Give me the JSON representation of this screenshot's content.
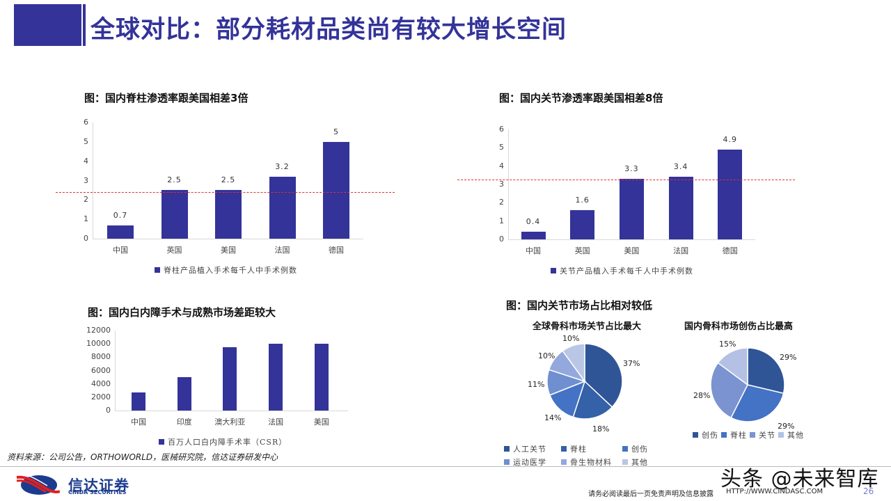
{
  "header": {
    "title": "全球对比：部分耗材品类尚有较大增长空间"
  },
  "chart_data": [
    {
      "type": "bar",
      "title": "图：国内脊柱渗透率跟美国相差3倍",
      "categories": [
        "中国",
        "英国",
        "美国",
        "法国",
        "德国"
      ],
      "values": [
        0.7,
        2.5,
        2.5,
        3.2,
        5
      ],
      "value_labels": [
        "0.7",
        "2.5",
        "2.5",
        "3.2",
        "5"
      ],
      "legend": "脊柱产品植入手术每千人中手术例数",
      "yticks": [
        "0",
        "1",
        "2",
        "3",
        "4",
        "5",
        "6"
      ],
      "ylim": [
        0,
        6
      ],
      "reference_line": 2.4,
      "xlabel": "",
      "ylabel": ""
    },
    {
      "type": "bar",
      "title": "图：国内关节渗透率跟美国相差8倍",
      "categories": [
        "中国",
        "英国",
        "美国",
        "法国",
        "德国"
      ],
      "values": [
        0.4,
        1.6,
        3.3,
        3.4,
        4.9
      ],
      "value_labels": [
        "0.4",
        "1.6",
        "3.3",
        "3.4",
        "4.9"
      ],
      "legend": "关节产品植入手术每千人中手术例数",
      "yticks": [
        "0",
        "1",
        "2",
        "3",
        "4",
        "5",
        "6"
      ],
      "ylim": [
        0,
        6
      ],
      "reference_line": 3.25,
      "xlabel": "",
      "ylabel": ""
    },
    {
      "type": "bar",
      "title": "图：国内白内障手术与成熟市场差距较大",
      "categories": [
        "中国",
        "印度",
        "澳大利亚",
        "法国",
        "美国"
      ],
      "values": [
        2700,
        5000,
        9500,
        10000,
        10000
      ],
      "legend": "百万人口白内障手术率（CSR）",
      "yticks": [
        "0",
        "2000",
        "4000",
        "6000",
        "8000",
        "10000",
        "12000"
      ],
      "ylim": [
        0,
        12000
      ],
      "xlabel": "",
      "ylabel": ""
    },
    {
      "type": "pie",
      "section_title": "图：国内关节市场占比相对较低",
      "title": "全球骨科市场关节占比最大",
      "labels": [
        "人工关节",
        "脊柱",
        "创伤",
        "运动医学",
        "骨生物材料",
        "其他"
      ],
      "values": [
        37,
        18,
        14,
        11,
        10,
        10
      ],
      "value_labels": [
        "37%",
        "18%",
        "14%",
        "11%",
        "10%",
        "10%"
      ],
      "colors": [
        "#2f5597",
        "#3461a8",
        "#4472c4",
        "#6f8fd0",
        "#93a8dc",
        "#b9c6e6"
      ]
    },
    {
      "type": "pie",
      "title": "国内骨科市场创伤占比最高",
      "labels": [
        "创伤",
        "脊柱",
        "关节",
        "其他"
      ],
      "values": [
        29,
        29,
        28,
        15
      ],
      "value_labels": [
        "29%",
        "29%",
        "28%",
        "15%"
      ],
      "colors": [
        "#2f5597",
        "#4472c4",
        "#7b93d0",
        "#b4c1e4"
      ]
    }
  ],
  "footer": {
    "source": "资料来源：公司公告，ORTHOWORLD，医械研究院，信达证券研发中心",
    "disclaimer": "请务必阅读最后一页免责声明及信息披露",
    "url": "HTTP://WWW.CINDASC.COM",
    "page_number": "26",
    "watermark": "头条 @未来智库",
    "logo_cn": "信达证券",
    "logo_en": "CINDA SECURITIES"
  }
}
